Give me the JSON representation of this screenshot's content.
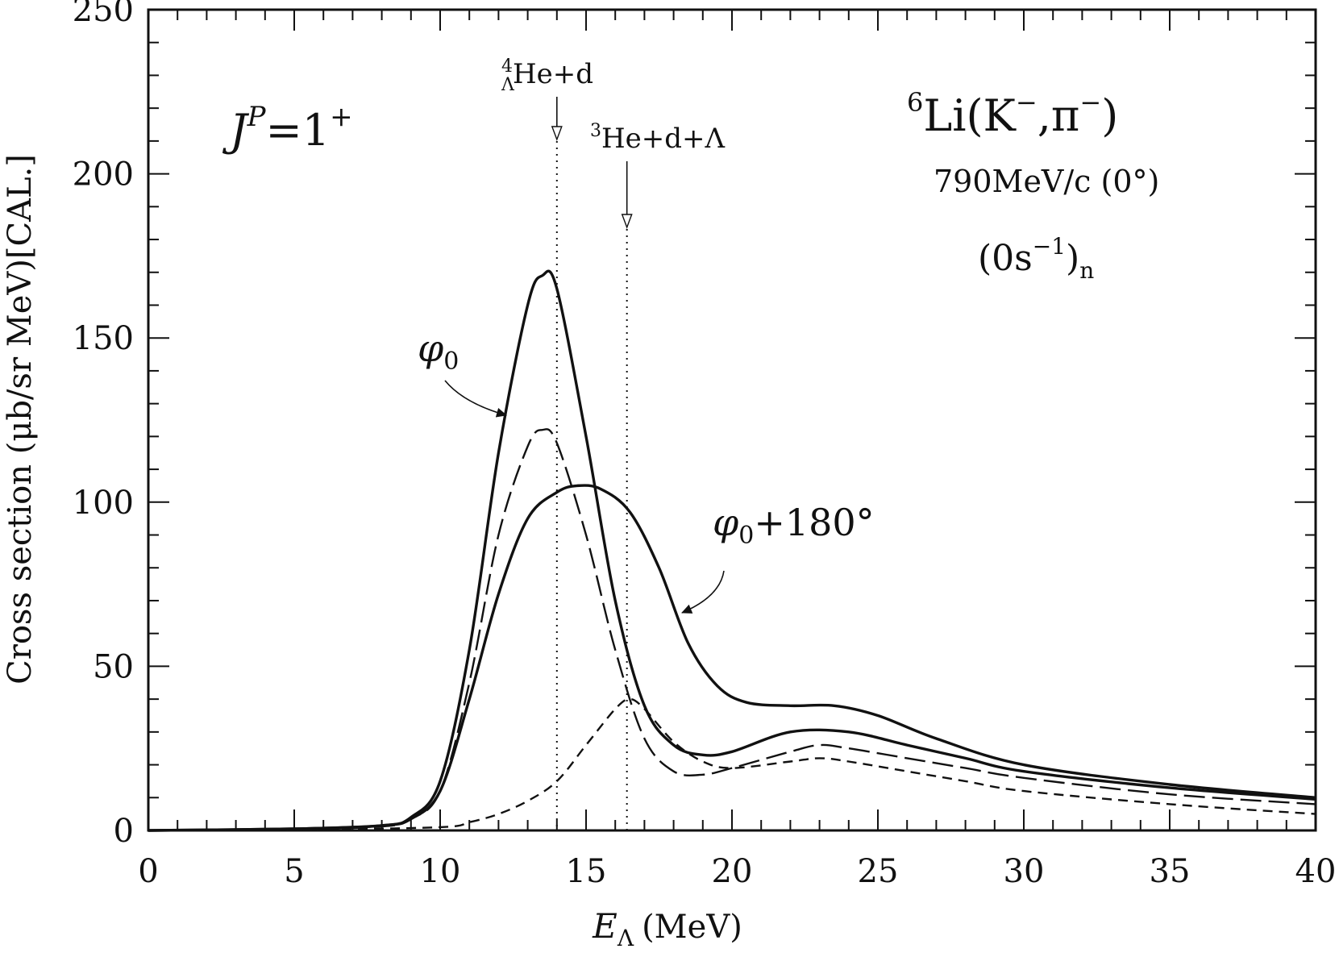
{
  "chart_data": {
    "type": "line",
    "xlabel_main": "E",
    "xlabel_sub": "Λ",
    "xlabel_unit": "(MeV)",
    "ylabel": "Cross section (μb/sr MeV)[CAL.]",
    "xlim": [
      0,
      40
    ],
    "ylim": [
      0,
      250
    ],
    "xticks": [
      "0",
      "5",
      "10",
      "15",
      "20",
      "25",
      "30",
      "35",
      "40"
    ],
    "yticks": [
      "0",
      "50",
      "100",
      "150",
      "200",
      "250"
    ],
    "grid": false,
    "series": [
      {
        "style": "solid",
        "x": [
          0,
          5,
          8,
          9,
          10,
          11,
          12,
          13,
          13.5,
          14,
          15,
          16,
          17,
          18,
          19,
          20,
          22,
          24,
          26,
          28,
          30,
          35,
          40
        ],
        "y": [
          0,
          0.5,
          1.5,
          4,
          15,
          55,
          115,
          160,
          169,
          165,
          120,
          70,
          38,
          26,
          23,
          24,
          30,
          30,
          26,
          22,
          18,
          13,
          9.5
        ]
      },
      {
        "style": "long-dash",
        "x": [
          0,
          5,
          8,
          9,
          10,
          11,
          12,
          13,
          13.5,
          14,
          15,
          16,
          17,
          18,
          19,
          20,
          22,
          23,
          24,
          26,
          28,
          30,
          35,
          40
        ],
        "y": [
          0,
          0.4,
          1.2,
          3.5,
          12,
          45,
          90,
          117,
          122,
          118,
          90,
          55,
          28,
          18,
          17,
          19,
          24,
          26,
          25,
          22,
          19,
          16,
          11,
          8
        ]
      },
      {
        "style": "short-dash",
        "x": [
          0,
          5,
          10,
          11,
          12,
          13,
          14,
          15,
          16,
          16.5,
          17,
          18,
          19,
          20,
          22,
          23,
          24,
          26,
          28,
          30,
          35,
          40
        ],
        "y": [
          0,
          0.2,
          1,
          2.5,
          5,
          9,
          15,
          26,
          37,
          40,
          37,
          27,
          21,
          19,
          21,
          22,
          21,
          18,
          15,
          12,
          8,
          5
        ]
      },
      {
        "style": "solid",
        "x": [
          0,
          5,
          8,
          9,
          10,
          11,
          12,
          13,
          14,
          14.7,
          15.5,
          16.5,
          17.5,
          18.5,
          19.5,
          20.5,
          22,
          23.5,
          25,
          27,
          30,
          35,
          40
        ],
        "y": [
          0,
          0.5,
          1.5,
          3.5,
          12,
          40,
          72,
          95,
          103,
          105,
          104,
          97,
          80,
          57,
          44,
          39,
          38,
          38,
          35,
          28,
          20,
          14,
          10
        ]
      }
    ],
    "thresholds": [
      {
        "x": 14.0,
        "label": "He+d",
        "sup": "4",
        "sub": "Λ"
      },
      {
        "x": 16.4,
        "label": "He+d+Λ",
        "sup": "3"
      }
    ],
    "annotations": {
      "jp": "J",
      "jp_sup": "P",
      "jp_value": "=1",
      "jp_value_sup": "+",
      "reaction_sup": "6",
      "reaction": "Li(K",
      "reaction_k_sup": "−",
      "reaction_mid": ",π",
      "reaction_pi_sup": "−",
      "reaction_end": ")",
      "momentum": "790MeV/c (0°)",
      "config_open": "(0s",
      "config_sup": "−1",
      "config_close": ")",
      "config_sub": "n",
      "phi0": "φ",
      "phi0_sub": "0",
      "phi180": "φ",
      "phi180_sub": "0",
      "phi180_rest": "+180°"
    }
  }
}
